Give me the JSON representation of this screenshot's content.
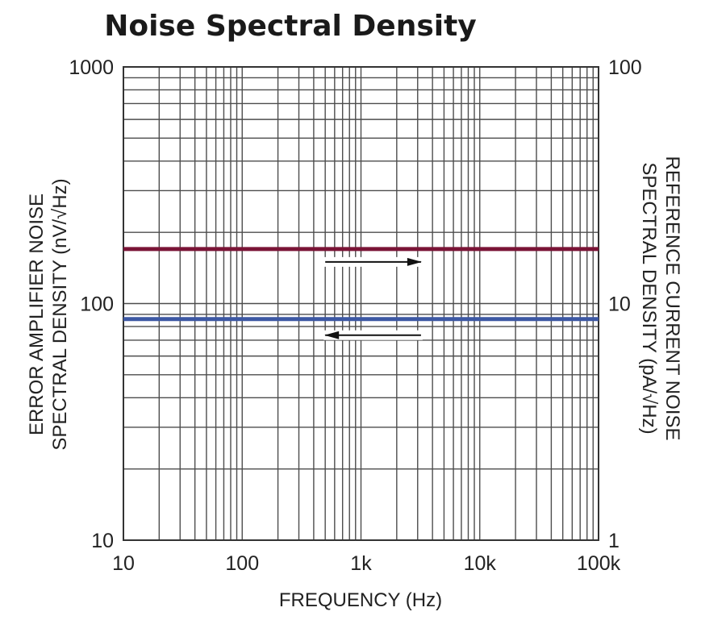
{
  "chart_data": {
    "type": "line",
    "title": "Noise Spectral Density",
    "xlabel": "FREQUENCY (Hz)",
    "ylabel_left_line1": "ERROR AMPLIFIER NOISE",
    "ylabel_left_line2": "SPECTRAL DENSITY (nV/√Hz)",
    "ylabel_right_line1": "REFERENCE CURRENT NOISE",
    "ylabel_right_line2": "SPECTRAL DENSITY (pA/√Hz)",
    "x_scale": "log",
    "y_scale": "log",
    "xlim": [
      10,
      100000
    ],
    "ylim_left": [
      10,
      1000
    ],
    "ylim_right": [
      1,
      100
    ],
    "x_ticks": [
      {
        "value": 10,
        "label": "10"
      },
      {
        "value": 100,
        "label": "100"
      },
      {
        "value": 1000,
        "label": "1k"
      },
      {
        "value": 10000,
        "label": "10k"
      },
      {
        "value": 100000,
        "label": "100k"
      }
    ],
    "y_ticks_left": [
      {
        "value": 10,
        "label": "10"
      },
      {
        "value": 100,
        "label": "100"
      },
      {
        "value": 1000,
        "label": "1000"
      }
    ],
    "y_ticks_right": [
      {
        "value": 1,
        "label": "1"
      },
      {
        "value": 10,
        "label": "10"
      },
      {
        "value": 100,
        "label": "100"
      }
    ],
    "grid": true,
    "series": [
      {
        "axis": "right",
        "color": "#7a1436",
        "x": [
          10,
          100000
        ],
        "values": [
          17,
          17
        ],
        "arrow": "right"
      },
      {
        "axis": "left",
        "color": "#3d58a3",
        "x": [
          10,
          100000
        ],
        "values": [
          86,
          86
        ],
        "arrow": "left"
      }
    ]
  }
}
